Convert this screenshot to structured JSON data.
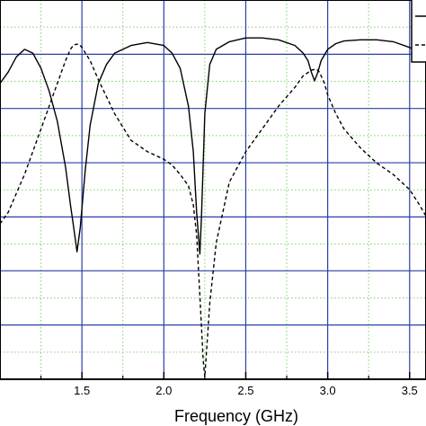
{
  "chart_data": {
    "type": "line",
    "title": "",
    "xlabel": "Frequency (GHz)",
    "ylabel": "",
    "xlim": [
      1.0,
      3.6
    ],
    "ylim": [
      0.0,
      1.0
    ],
    "x_ticks": [
      1.5,
      2.0,
      2.5,
      3.0,
      3.5
    ],
    "x_tick_labels": [
      "1.5",
      "2.0",
      "2.5",
      "3.0",
      "3.5"
    ],
    "major_y_lines": [
      0.0,
      0.143,
      0.286,
      0.428,
      0.571,
      0.714,
      0.857,
      1.0
    ],
    "grid": true,
    "legend": "top-right",
    "colors": {
      "major_grid": "#2b3fa8",
      "minor_grid": "#7fcf6f",
      "series": "#000000"
    },
    "series": [
      {
        "style": "solid",
        "x": [
          1.0,
          1.05,
          1.1,
          1.15,
          1.2,
          1.25,
          1.3,
          1.35,
          1.4,
          1.43,
          1.45,
          1.47,
          1.49,
          1.52,
          1.55,
          1.6,
          1.65,
          1.7,
          1.8,
          1.9,
          2.0,
          2.05,
          2.1,
          2.15,
          2.18,
          2.2,
          2.22,
          2.23,
          2.25,
          2.28,
          2.32,
          2.4,
          2.5,
          2.6,
          2.7,
          2.8,
          2.85,
          2.88,
          2.9,
          2.92,
          2.94,
          2.96,
          3.0,
          3.05,
          3.1,
          3.2,
          3.3,
          3.4,
          3.5,
          3.6
        ],
        "y": [
          0.78,
          0.81,
          0.85,
          0.87,
          0.86,
          0.82,
          0.76,
          0.68,
          0.56,
          0.46,
          0.4,
          0.336,
          0.4,
          0.55,
          0.67,
          0.78,
          0.83,
          0.86,
          0.88,
          0.888,
          0.88,
          0.86,
          0.82,
          0.72,
          0.6,
          0.44,
          0.33,
          0.43,
          0.7,
          0.83,
          0.87,
          0.89,
          0.9,
          0.9,
          0.895,
          0.88,
          0.86,
          0.84,
          0.81,
          0.787,
          0.81,
          0.84,
          0.87,
          0.885,
          0.892,
          0.895,
          0.895,
          0.89,
          0.875,
          0.85
        ]
      },
      {
        "style": "dashed",
        "x": [
          1.0,
          1.05,
          1.1,
          1.15,
          1.2,
          1.25,
          1.3,
          1.35,
          1.4,
          1.43,
          1.45,
          1.48,
          1.5,
          1.55,
          1.6,
          1.7,
          1.8,
          1.9,
          2.0,
          2.05,
          2.1,
          2.15,
          2.18,
          2.2,
          2.22,
          2.24,
          2.25,
          2.26,
          2.28,
          2.32,
          2.4,
          2.5,
          2.6,
          2.7,
          2.8,
          2.85,
          2.9,
          2.93,
          2.95,
          2.98,
          3.0,
          3.05,
          3.1,
          3.2,
          3.3,
          3.4,
          3.5,
          3.56,
          3.6
        ],
        "y": [
          0.41,
          0.44,
          0.49,
          0.54,
          0.6,
          0.66,
          0.72,
          0.78,
          0.84,
          0.87,
          0.882,
          0.884,
          0.875,
          0.84,
          0.79,
          0.7,
          0.63,
          0.6,
          0.58,
          0.565,
          0.54,
          0.51,
          0.46,
          0.38,
          0.22,
          0.05,
          0.006,
          0.07,
          0.2,
          0.36,
          0.52,
          0.6,
          0.66,
          0.72,
          0.77,
          0.8,
          0.815,
          0.818,
          0.81,
          0.78,
          0.75,
          0.7,
          0.66,
          0.61,
          0.57,
          0.54,
          0.5,
          0.46,
          0.43
        ]
      }
    ]
  }
}
